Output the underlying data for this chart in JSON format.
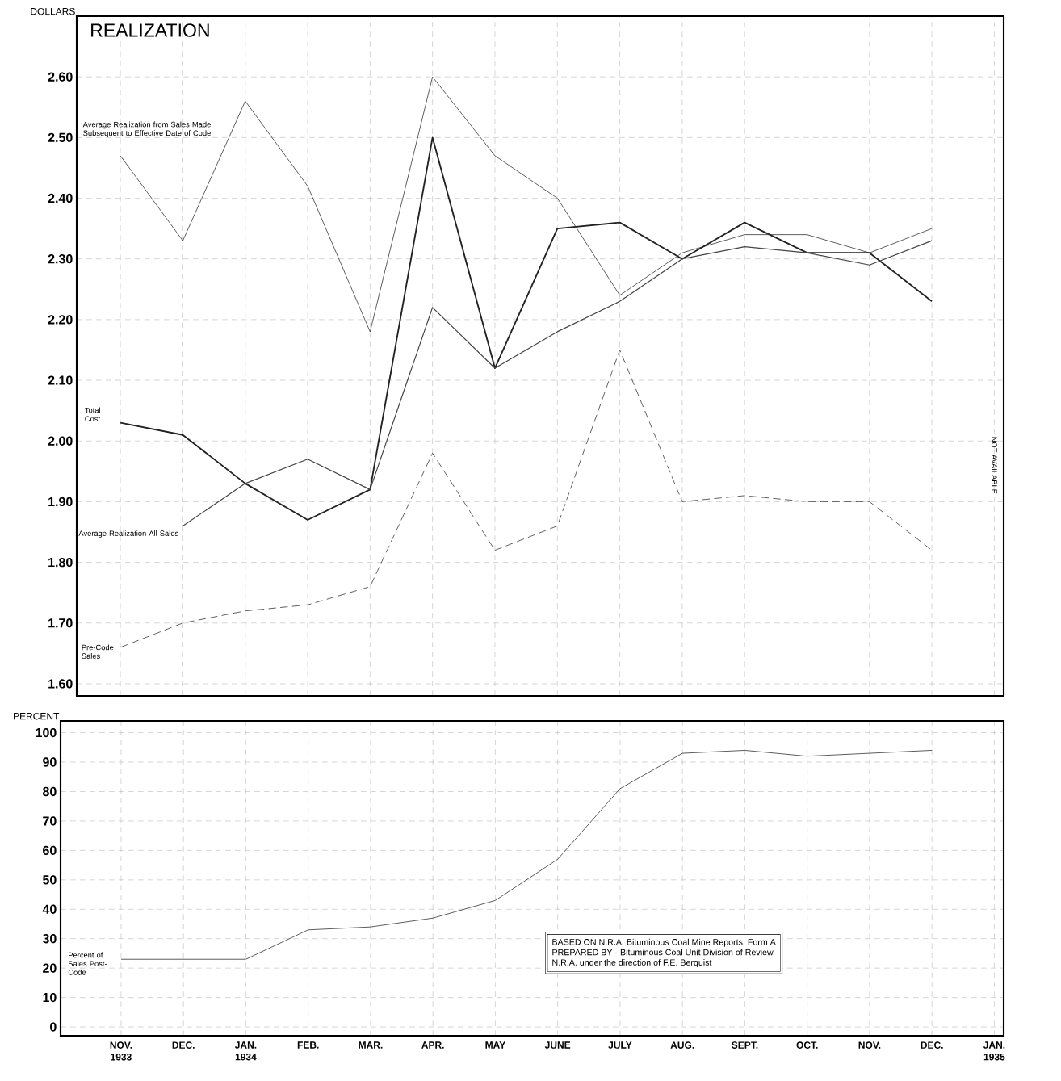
{
  "chart_data": [
    {
      "type": "line",
      "title": "REALIZATION",
      "ylabel": "DOLLARS",
      "categories": [
        null,
        null,
        null,
        null,
        null,
        null,
        null,
        null,
        null,
        null,
        null,
        null,
        null,
        null,
        null
      ],
      "series": [
        {
          "name": "Average Realization from Sales Made Subsequent to Effective Date of Code",
          "color": "#333333",
          "line_style": "solid",
          "values": [
            2.47,
            2.33,
            2.56,
            2.42,
            2.18,
            2.6,
            2.47,
            2.4,
            2.24,
            2.31,
            2.34,
            2.34,
            2.31,
            2.35,
            null
          ]
        },
        {
          "name": "Total Cost",
          "color": "#222222",
          "line_style": "solid",
          "values": [
            2.03,
            2.01,
            1.93,
            1.87,
            1.92,
            2.5,
            2.12,
            2.35,
            2.36,
            2.3,
            2.36,
            2.31,
            2.31,
            2.23,
            null
          ]
        },
        {
          "name": "Average Realization All Sales",
          "color": "#444444",
          "line_style": "solid",
          "values": [
            1.86,
            1.86,
            1.93,
            1.97,
            1.92,
            2.22,
            2.12,
            2.18,
            2.23,
            2.3,
            2.32,
            2.31,
            2.29,
            2.33,
            null
          ]
        },
        {
          "name": "Pre-Code Sales",
          "color": "#555555",
          "line_style": "dashed",
          "values": [
            1.66,
            1.7,
            1.72,
            1.73,
            1.76,
            1.98,
            1.82,
            1.86,
            2.15,
            1.9,
            1.91,
            1.9,
            1.9,
            1.82,
            null
          ]
        }
      ],
      "ylim": [
        1.58,
        2.7
      ],
      "yticks": [
        {
          "value": 1.6,
          "label": "1.60"
        },
        {
          "value": 1.7,
          "label": "1.70"
        },
        {
          "value": 1.8,
          "label": "1.80"
        },
        {
          "value": 1.9,
          "label": "1.90"
        },
        {
          "value": 2.0,
          "label": "2.00"
        },
        {
          "value": 2.1,
          "label": "2.10"
        },
        {
          "value": 2.2,
          "label": "2.20"
        },
        {
          "value": 2.3,
          "label": "2.30"
        },
        {
          "value": 2.4,
          "label": "2.40"
        },
        {
          "value": 2.5,
          "label": "2.50"
        },
        {
          "value": 2.6,
          "label": "2.60"
        }
      ],
      "grid": true,
      "tick_labels": "y",
      "annotations": [
        "NOT AVAILABLE"
      ]
    },
    {
      "type": "line",
      "ylabel": "PERCENT",
      "categories": [
        "NOV. 1933",
        "DEC.",
        "JAN. 1934",
        "FEB.",
        "MAR.",
        "APR.",
        "MAY",
        "JUNE",
        "JULY",
        "AUG.",
        "SEPT.",
        "OCT.",
        "NOV.",
        "DEC.",
        "JAN. 1935"
      ],
      "series": [
        {
          "name": "Percent of Sales Post-Code",
          "color": "#333333",
          "line_style": "solid",
          "values": [
            23,
            23,
            23,
            33,
            34,
            37,
            43,
            57,
            81,
            93,
            94,
            92,
            93,
            94,
            null
          ]
        }
      ],
      "ylim": [
        -3,
        104
      ],
      "yticks": [
        0,
        10,
        20,
        30,
        40,
        50,
        60,
        70,
        80,
        90,
        100
      ],
      "grid": true,
      "annotations": [
        "BASED ON N.R.A. Bituminous Coal Mine Reports, Form A",
        "PREPARED BY - Bituminous Coal Unit Division of Review",
        "N.R.A. under the direction of F.E. Berquist"
      ]
    }
  ]
}
